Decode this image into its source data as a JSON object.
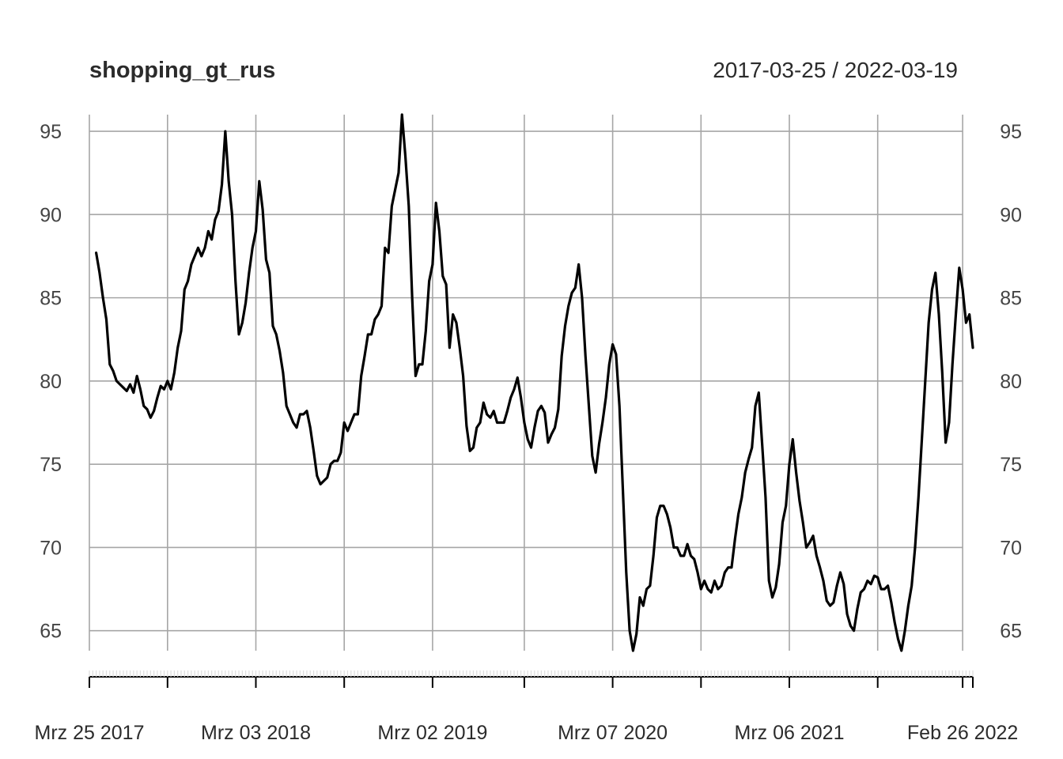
{
  "chart_data": {
    "type": "line",
    "title": "shopping_gt_rus",
    "date_range": "2017-03-25 / 2022-03-19",
    "x_start": "2017-03-25",
    "x_end": "2022-03-19",
    "ylim": [
      63.8,
      96
    ],
    "y_ticks": [
      65,
      70,
      75,
      80,
      85,
      90,
      95
    ],
    "y_tick_labels": [
      "65",
      "70",
      "75",
      "80",
      "85",
      "90",
      "95"
    ],
    "x_ticks": [
      {
        "date": "2017-03-25",
        "label": "Mrz 25 2017"
      },
      {
        "date": "2017-09-02",
        "label": ""
      },
      {
        "date": "2018-03-03",
        "label": "Mrz 03 2018"
      },
      {
        "date": "2018-09-01",
        "label": ""
      },
      {
        "date": "2019-03-02",
        "label": "Mrz 02 2019"
      },
      {
        "date": "2019-09-07",
        "label": ""
      },
      {
        "date": "2020-03-07",
        "label": "Mrz 07 2020"
      },
      {
        "date": "2020-09-05",
        "label": ""
      },
      {
        "date": "2021-03-06",
        "label": "Mrz 06 2021"
      },
      {
        "date": "2021-09-04",
        "label": ""
      },
      {
        "date": "2022-02-26",
        "label": "Feb 26 2022"
      }
    ],
    "grid": true,
    "line_color": "#000000",
    "series": [
      {
        "x": [
          "2017-04-08",
          "2017-04-15",
          "2017-04-22",
          "2017-04-29",
          "2017-05-06",
          "2017-05-13",
          "2017-05-20",
          "2017-05-27",
          "2017-06-03",
          "2017-06-10",
          "2017-06-17",
          "2017-06-24",
          "2017-07-01",
          "2017-07-08",
          "2017-07-15",
          "2017-07-22",
          "2017-07-29",
          "2017-08-05",
          "2017-08-12",
          "2017-08-19",
          "2017-08-26",
          "2017-09-02",
          "2017-09-09",
          "2017-09-16",
          "2017-09-23",
          "2017-09-30",
          "2017-10-07",
          "2017-10-14",
          "2017-10-21",
          "2017-10-28",
          "2017-11-04",
          "2017-11-11",
          "2017-11-18",
          "2017-11-25",
          "2017-12-02",
          "2017-12-09",
          "2017-12-16",
          "2017-12-23",
          "2017-12-30",
          "2018-01-06",
          "2018-01-13",
          "2018-01-20",
          "2018-01-27",
          "2018-02-03",
          "2018-02-10",
          "2018-02-17",
          "2018-02-24",
          "2018-03-03",
          "2018-03-10",
          "2018-03-17",
          "2018-03-24",
          "2018-03-31",
          "2018-04-07",
          "2018-04-14",
          "2018-04-21",
          "2018-04-28",
          "2018-05-05",
          "2018-05-12",
          "2018-05-19",
          "2018-05-26",
          "2018-06-02",
          "2018-06-09",
          "2018-06-16",
          "2018-06-23",
          "2018-06-30",
          "2018-07-07",
          "2018-07-14",
          "2018-07-21",
          "2018-07-28",
          "2018-08-04",
          "2018-08-11",
          "2018-08-18",
          "2018-08-25",
          "2018-09-01",
          "2018-09-08",
          "2018-09-15",
          "2018-09-22",
          "2018-09-29",
          "2018-10-06",
          "2018-10-13",
          "2018-10-20",
          "2018-10-27",
          "2018-11-03",
          "2018-11-10",
          "2018-11-17",
          "2018-11-24",
          "2018-12-01",
          "2018-12-08",
          "2018-12-15",
          "2018-12-22",
          "2018-12-29",
          "2019-01-05",
          "2019-01-12",
          "2019-01-19",
          "2019-01-26",
          "2019-02-02",
          "2019-02-09",
          "2019-02-16",
          "2019-02-23",
          "2019-03-02",
          "2019-03-09",
          "2019-03-16",
          "2019-03-23",
          "2019-03-30",
          "2019-04-06",
          "2019-04-13",
          "2019-04-20",
          "2019-04-27",
          "2019-05-04",
          "2019-05-11",
          "2019-05-18",
          "2019-05-25",
          "2019-06-01",
          "2019-06-08",
          "2019-06-15",
          "2019-06-22",
          "2019-06-29",
          "2019-07-06",
          "2019-07-13",
          "2019-07-20",
          "2019-07-27",
          "2019-08-03",
          "2019-08-10",
          "2019-08-17",
          "2019-08-24",
          "2019-08-31",
          "2019-09-07",
          "2019-09-14",
          "2019-09-21",
          "2019-09-28",
          "2019-10-05",
          "2019-10-12",
          "2019-10-19",
          "2019-10-26",
          "2019-11-02",
          "2019-11-09",
          "2019-11-16",
          "2019-11-23",
          "2019-11-30",
          "2019-12-07",
          "2019-12-14",
          "2019-12-21",
          "2019-12-28",
          "2020-01-04",
          "2020-01-11",
          "2020-01-18",
          "2020-01-25",
          "2020-02-01",
          "2020-02-08",
          "2020-02-15",
          "2020-02-22",
          "2020-02-29",
          "2020-03-07",
          "2020-03-14",
          "2020-03-21",
          "2020-03-28",
          "2020-04-04",
          "2020-04-11",
          "2020-04-18",
          "2020-04-25",
          "2020-05-02",
          "2020-05-09",
          "2020-05-16",
          "2020-05-23",
          "2020-05-30",
          "2020-06-06",
          "2020-06-13",
          "2020-06-20",
          "2020-06-27",
          "2020-07-04",
          "2020-07-11",
          "2020-07-18",
          "2020-07-25",
          "2020-08-01",
          "2020-08-08",
          "2020-08-15",
          "2020-08-22",
          "2020-08-29",
          "2020-09-05",
          "2020-09-12",
          "2020-09-19",
          "2020-09-26",
          "2020-10-03",
          "2020-10-10",
          "2020-10-17",
          "2020-10-24",
          "2020-10-31",
          "2020-11-07",
          "2020-11-14",
          "2020-11-21",
          "2020-11-28",
          "2020-12-05",
          "2020-12-12",
          "2020-12-19",
          "2020-12-26",
          "2021-01-02",
          "2021-01-09",
          "2021-01-16",
          "2021-01-23",
          "2021-01-30",
          "2021-02-06",
          "2021-02-13",
          "2021-02-20",
          "2021-02-27",
          "2021-03-06",
          "2021-03-13",
          "2021-03-20",
          "2021-03-27",
          "2021-04-03",
          "2021-04-10",
          "2021-04-17",
          "2021-04-24",
          "2021-05-01",
          "2021-05-08",
          "2021-05-15",
          "2021-05-22",
          "2021-05-29",
          "2021-06-05",
          "2021-06-12",
          "2021-06-19",
          "2021-06-26",
          "2021-07-03",
          "2021-07-10",
          "2021-07-17",
          "2021-07-24",
          "2021-07-31",
          "2021-08-07",
          "2021-08-14",
          "2021-08-21",
          "2021-08-28",
          "2021-09-04",
          "2021-09-11",
          "2021-09-18",
          "2021-09-25",
          "2021-10-02",
          "2021-10-09",
          "2021-10-16",
          "2021-10-23",
          "2021-10-30",
          "2021-11-06",
          "2021-11-13",
          "2021-11-20",
          "2021-11-27",
          "2021-12-04",
          "2021-12-11",
          "2021-12-18",
          "2021-12-25",
          "2022-01-01",
          "2022-01-08",
          "2022-01-15",
          "2022-01-22",
          "2022-01-29",
          "2022-02-05",
          "2022-02-12",
          "2022-02-19",
          "2022-02-26",
          "2022-03-05",
          "2022-03-12",
          "2022-03-19"
        ],
        "y": [
          87.7,
          86.5,
          85,
          83.7,
          81,
          80.6,
          80,
          79.8,
          79.6,
          79.4,
          79.8,
          79.3,
          80.3,
          79.5,
          78.5,
          78.3,
          77.8,
          78.2,
          79,
          79.7,
          79.5,
          80,
          79.5,
          80.5,
          82,
          83,
          85.5,
          86,
          87,
          87.5,
          88,
          87.5,
          88,
          89,
          88.5,
          89.7,
          90.2,
          91.8,
          95,
          92,
          90,
          86,
          82.8,
          83.5,
          84.7,
          86.5,
          88,
          89,
          92,
          90.3,
          87.3,
          86.5,
          83.3,
          82.8,
          81.8,
          80.5,
          78.5,
          78,
          77.5,
          77.2,
          78,
          78,
          78.2,
          77.2,
          75.8,
          74.3,
          73.8,
          74,
          74.2,
          75,
          75.2,
          75.2,
          75.7,
          77.5,
          77,
          77.5,
          78,
          78,
          80.3,
          81.5,
          82.8,
          82.8,
          83.7,
          84,
          84.5,
          88,
          87.7,
          90.5,
          91.5,
          92.5,
          96,
          93.5,
          90.5,
          85,
          80.3,
          81,
          81,
          83,
          86,
          87,
          90.7,
          89,
          86.3,
          85.8,
          82,
          84,
          83.5,
          82,
          80.3,
          77.3,
          75.8,
          76,
          77.2,
          77.5,
          78.7,
          78,
          77.8,
          78.2,
          77.5,
          77.5,
          77.5,
          78.2,
          79,
          79.5,
          80.2,
          79,
          77.5,
          76.5,
          76,
          77.2,
          78.2,
          78.5,
          78.1,
          76.3,
          76.8,
          77.2,
          78.3,
          81.5,
          83.3,
          84.5,
          85.3,
          85.6,
          87,
          85,
          81.5,
          78.5,
          75.5,
          74.5,
          76.2,
          77.5,
          79,
          81,
          82.2,
          81.6,
          78.5,
          73.5,
          68.5,
          65,
          63.8,
          64.8,
          67,
          66.5,
          67.5,
          67.7,
          69.5,
          71.8,
          72.5,
          72.5,
          72,
          71.2,
          70,
          70,
          69.5,
          69.5,
          70.2,
          69.5,
          69.3,
          68.5,
          67.5,
          68,
          67.5,
          67.3,
          68,
          67.5,
          67.7,
          68.5,
          68.8,
          68.8,
          70.5,
          72,
          73,
          74.5,
          75.3,
          76,
          78.5,
          79.3,
          76.2,
          73,
          68,
          67,
          67.6,
          69,
          71.5,
          72.5,
          75,
          76.5,
          74.5,
          72.8,
          71.5,
          70,
          70.3,
          70.7,
          69.5,
          68.8,
          68,
          66.8,
          66.5,
          66.7,
          67.7,
          68.5,
          67.8,
          66,
          65.3,
          65,
          66.3,
          67.3,
          67.5,
          68,
          67.8,
          68.3,
          68.2,
          67.5,
          67.5,
          67.7,
          66.7,
          65.5,
          64.5,
          63.8,
          65,
          66.5,
          67.7,
          70,
          73,
          76.5,
          80,
          83.5,
          85.5,
          86.5,
          84,
          80.5,
          76.3,
          77.5,
          81,
          84,
          86.8,
          85.5,
          83.5,
          84,
          82
        ]
      }
    ]
  }
}
